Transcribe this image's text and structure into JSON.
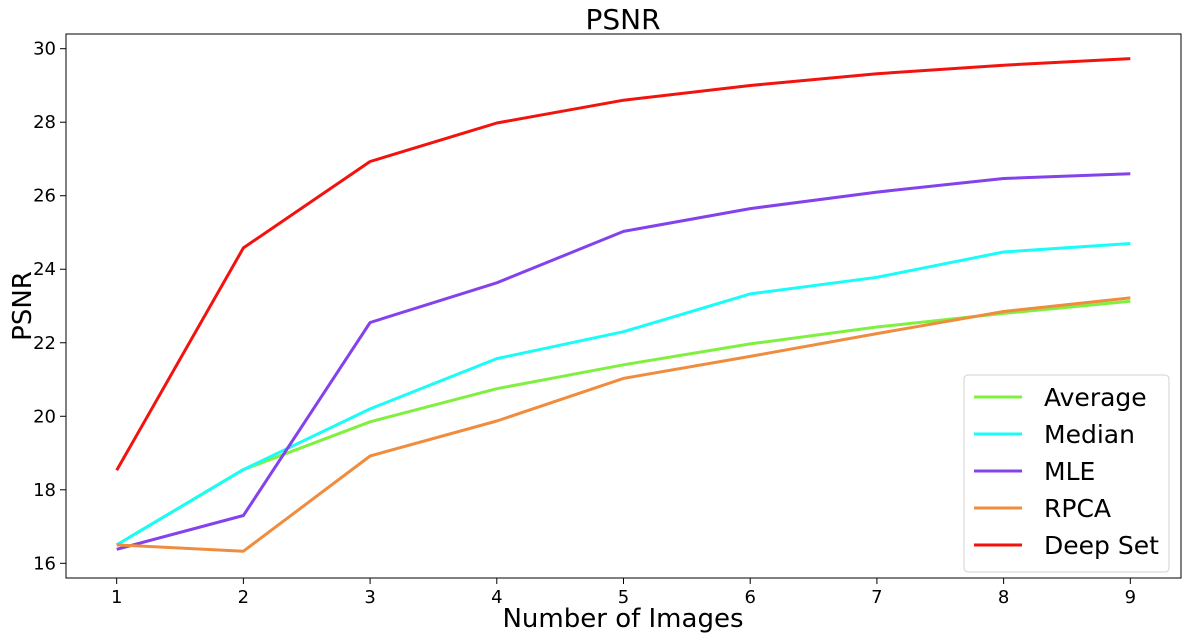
{
  "chart_data": {
    "type": "line",
    "title": "PSNR",
    "xlabel": "Number of Images",
    "ylabel": "PSNR",
    "x": [
      1,
      2,
      3,
      4,
      5,
      6,
      7,
      8,
      9
    ],
    "xlim": [
      0.6,
      9.4
    ],
    "ylim": [
      15.6,
      30.4
    ],
    "xticks": [
      1,
      2,
      3,
      4,
      5,
      6,
      7,
      8,
      9
    ],
    "yticks": [
      16,
      18,
      20,
      22,
      24,
      26,
      28,
      30
    ],
    "grid": false,
    "legend_position": "bottom-right",
    "series": [
      {
        "name": "Average",
        "color": "#80f040",
        "values": [
          16.5,
          18.55,
          19.85,
          20.75,
          21.4,
          21.97,
          22.43,
          22.8,
          23.13
        ]
      },
      {
        "name": "Median",
        "color": "#1afcf7",
        "values": [
          16.5,
          18.55,
          20.2,
          21.57,
          22.3,
          23.33,
          23.78,
          24.47,
          24.7
        ]
      },
      {
        "name": "MLE",
        "color": "#8442ec",
        "values": [
          16.38,
          17.3,
          22.55,
          23.63,
          25.03,
          25.65,
          26.1,
          26.47,
          26.6
        ]
      },
      {
        "name": "RPCA",
        "color": "#f08c3e",
        "values": [
          16.5,
          16.33,
          18.92,
          19.87,
          21.03,
          21.63,
          22.25,
          22.85,
          23.22
        ]
      },
      {
        "name": "Deep Set",
        "color": "#f2130f",
        "values": [
          18.53,
          24.58,
          26.93,
          27.98,
          28.6,
          29.0,
          29.32,
          29.55,
          29.73
        ]
      }
    ]
  }
}
